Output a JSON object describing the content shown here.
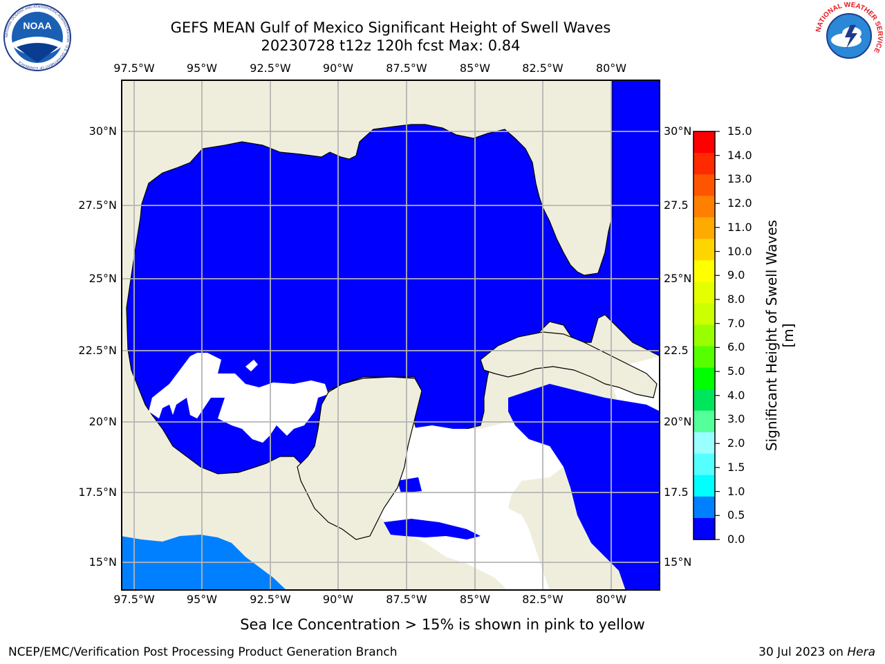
{
  "header": {
    "title_line1": "GEFS MEAN Gulf of Mexico Significant Height of Swell Waves",
    "title_line2": "20230728 t12z 120h fcst   Max: 0.84"
  },
  "logos": {
    "noaa": "NOAA",
    "noaa_ring_text": "NATIONAL OCEANIC AND ATMOSPHERIC ADMINISTRATION · U.S. DEPARTMENT OF COMMERCE",
    "nws_ring_text": "NATIONAL WEATHER SERVICE"
  },
  "axes": {
    "lon_ticks": [
      "97.5°W",
      "95°W",
      "92.5°W",
      "90°W",
      "87.5°W",
      "85°W",
      "82.5°W",
      "80°W"
    ],
    "lat_ticks": [
      "30°N",
      "27.5°N",
      "25°N",
      "22.5°N",
      "20°N",
      "17.5°N",
      "15°N"
    ],
    "lat_ticks_right": [
      "30°N",
      "27.5",
      "25°N",
      "22.5",
      "20°N",
      "17.5",
      "15°N"
    ]
  },
  "colorbar": {
    "title": "Significant Height of Swell Waves [m]",
    "labels": [
      "15.0",
      "14.0",
      "13.0",
      "12.0",
      "11.0",
      "10.0",
      "9.0",
      "8.0",
      "7.0",
      "6.0",
      "5.0",
      "4.0",
      "3.0",
      "2.0",
      "1.5",
      "1.0",
      "0.5",
      "0.0"
    ],
    "colors": [
      "#ff0000",
      "#ff2a00",
      "#ff5500",
      "#ff8000",
      "#ffaa00",
      "#ffd500",
      "#ffff00",
      "#e6ff00",
      "#ccff00",
      "#99ff00",
      "#55ff00",
      "#00ff00",
      "#00e65c",
      "#55ff99",
      "#99ffff",
      "#55ffff",
      "#00ffff",
      "#0080ff",
      "#0000ff"
    ]
  },
  "map_colors": {
    "land": "#efeedc",
    "swell_0_0_5": "#0000ff",
    "swell_0_5_1": "#0080ff",
    "no_data": "#ffffff",
    "grid": "#b4b4b4"
  },
  "note": "Sea Ice Concentration > 15% is shown in pink to yellow",
  "footer": {
    "left": "NCEP/EMC/Verification Post Processing Product Generation Branch",
    "right_date": "30 Jul 2023 on ",
    "right_host": "Hera"
  }
}
